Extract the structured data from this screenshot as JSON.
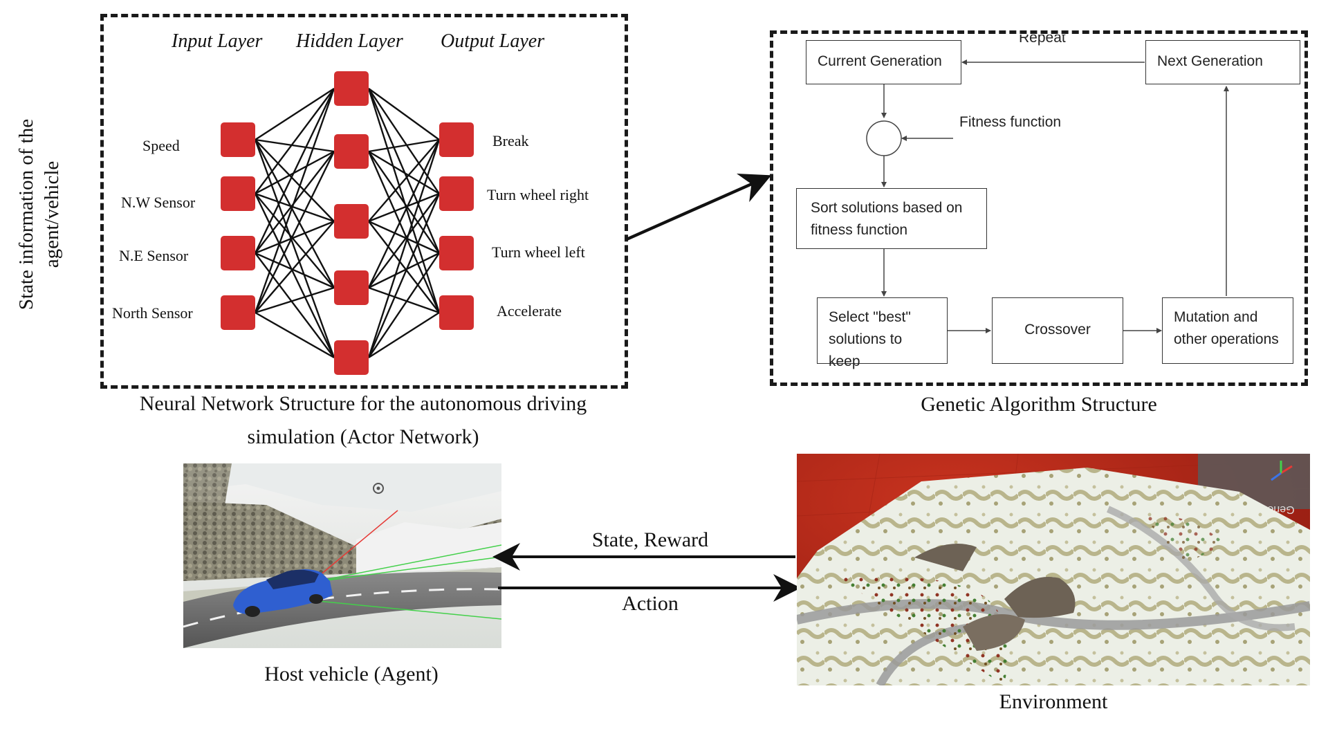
{
  "side_label": "State information of the agent/vehicle",
  "neural_network": {
    "layer_titles": [
      "Input Layer",
      "Hidden Layer",
      "Output Layer"
    ],
    "inputs": [
      "Speed",
      "N.W Sensor",
      "N.E Sensor",
      "North Sensor"
    ],
    "outputs": [
      "Break",
      "Turn wheel right",
      "Turn wheel left",
      "Accelerate"
    ],
    "hidden_count": 5,
    "node_color": "#d32f2f",
    "caption_line1": "Neural Network Structure for the autonomous driving",
    "caption_line2": "simulation (Actor Network)"
  },
  "genetic_algorithm": {
    "current_generation": "Current Generation",
    "next_generation": "Next Generation",
    "repeat": "Repeat",
    "fitness_function": "Fitness function",
    "sort_line1": "Sort solutions based on",
    "sort_line2": "fitness function",
    "select_line1": "Select \"best\"",
    "select_line2": "solutions to keep",
    "crossover": "Crossover",
    "mutation_line1": "Mutation and",
    "mutation_line2": "other operations",
    "caption": "Genetic Algorithm Structure"
  },
  "interaction": {
    "state_reward": "State, Reward",
    "action": "Action"
  },
  "agent_caption": "Host vehicle (Agent)",
  "environment_caption": "Environment",
  "environment_sign": "Generation",
  "colors": {
    "environment_background": "#b5271a",
    "car": "#2f5fd0",
    "sensor_ray_red": "#e53935",
    "sensor_ray_green": "#43d04a"
  }
}
